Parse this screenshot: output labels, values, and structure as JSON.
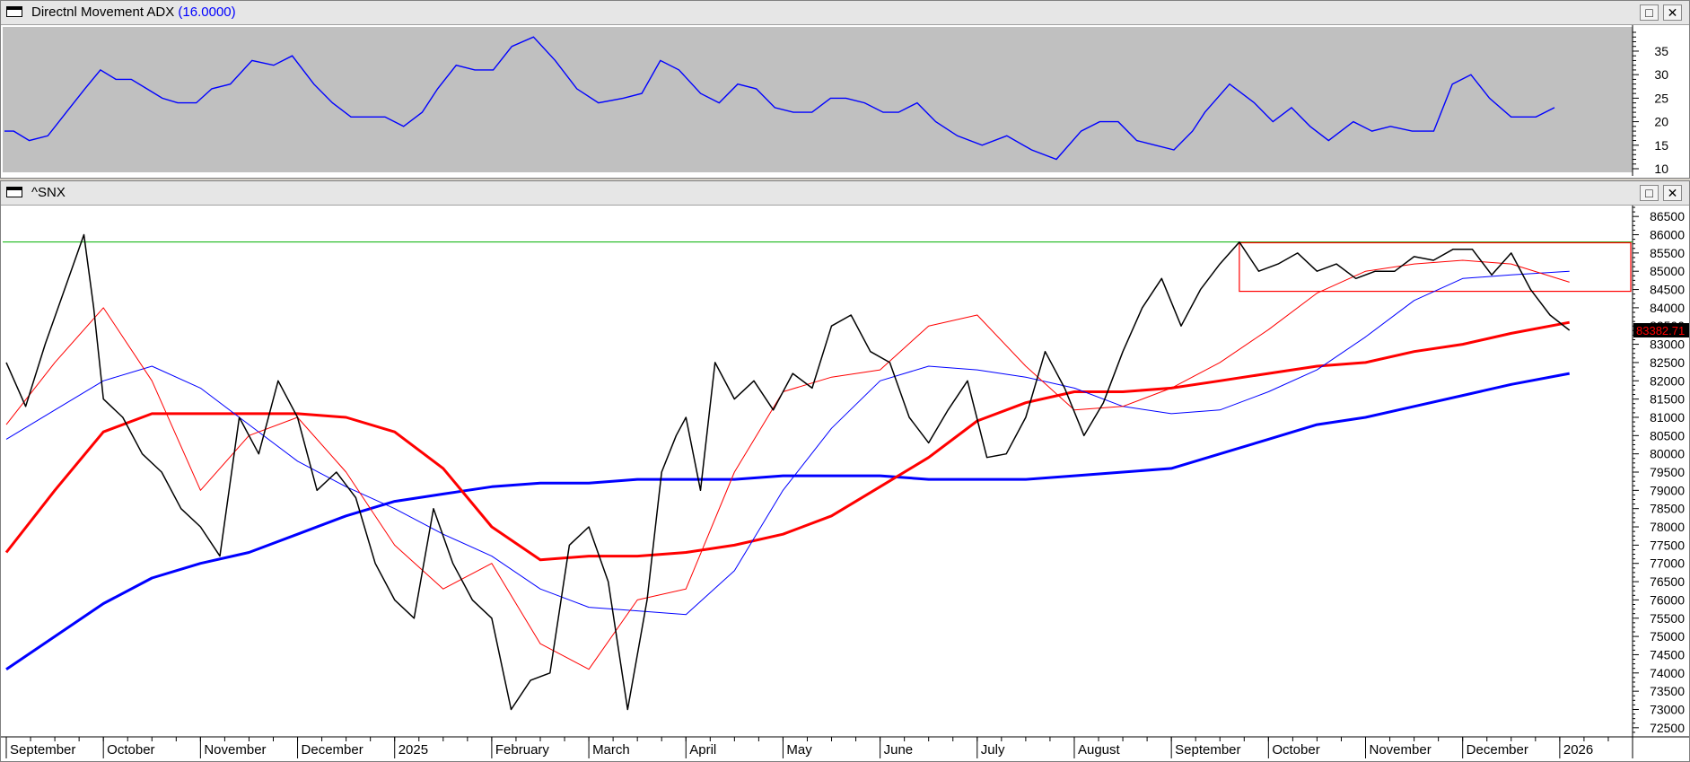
{
  "adx_panel": {
    "title": "Directnl Movement ADX",
    "param": "(16.0000)",
    "maximize_glyph": "□",
    "close_glyph": "✕",
    "background": "#c0c0c0",
    "line_color": "#0000ff"
  },
  "price_panel": {
    "title": "^SNX",
    "maximize_glyph": "□",
    "close_glyph": "✕",
    "last_price_label": "83382.71",
    "colors": {
      "price": "#000000",
      "fast_ma": "#ff0000",
      "medium_ma": "#0000ff",
      "slow_red_ma": "#ff0000",
      "slow_blue_ma": "#0000ff",
      "resistance": "#00b000",
      "range_box": "#ff0000",
      "last_label_bg": "#000000",
      "last_label_fg": "#ff0000"
    }
  },
  "chart_data": [
    {
      "type": "line",
      "name": "Directnl Movement ADX (16.0000)",
      "ylim": [
        10,
        39
      ],
      "y_ticks": [
        10,
        15,
        20,
        25,
        30,
        35
      ],
      "x": [
        0,
        3,
        8,
        14,
        20,
        26,
        31,
        36,
        41,
        46,
        51,
        56,
        62,
        67,
        73,
        80,
        87,
        93,
        100,
        106,
        112,
        117,
        123,
        129,
        135,
        140,
        146,
        152,
        158,
        164,
        171,
        178,
        185,
        192,
        200,
        206,
        212,
        218,
        225,
        231,
        237,
        243,
        249,
        255,
        261,
        267,
        272,
        278,
        284,
        289,
        295,
        301,
        308,
        316,
        324,
        332,
        340,
        348,
        354,
        360,
        366,
        372,
        378,
        384,
        388,
        396,
        404,
        410,
        416,
        422,
        428,
        436,
        442,
        448,
        455,
        462,
        468,
        474,
        480,
        487,
        495,
        501
      ],
      "y": [
        18,
        18,
        16,
        17,
        22,
        27,
        31,
        29,
        29,
        27,
        25,
        24,
        24,
        27,
        28,
        33,
        32,
        34,
        28,
        24,
        21,
        21,
        21,
        19,
        22,
        27,
        32,
        31,
        31,
        36,
        38,
        33,
        27,
        24,
        25,
        26,
        33,
        31,
        26,
        24,
        28,
        27,
        23,
        22,
        22,
        25,
        25,
        24,
        22,
        22,
        24,
        20,
        17,
        15,
        17,
        14,
        12,
        18,
        20,
        20,
        16,
        15,
        14,
        18,
        22,
        28,
        24,
        20,
        23,
        19,
        16,
        20,
        18,
        19,
        18,
        18,
        28,
        30,
        25,
        21,
        21,
        23
      ],
      "x_axis": "shared with price panel"
    },
    {
      "type": "line",
      "title": "^SNX",
      "ylim": [
        72250,
        86750
      ],
      "y_ticks": [
        72500,
        73000,
        73500,
        74000,
        74500,
        75000,
        75500,
        76000,
        76500,
        77000,
        77500,
        78000,
        78500,
        79000,
        79500,
        80000,
        80500,
        81000,
        81500,
        82000,
        82500,
        83000,
        83500,
        84000,
        84500,
        85000,
        85500,
        86000,
        86500
      ],
      "x_tick_labels": [
        "September",
        "October",
        "November",
        "December",
        "2025",
        "February",
        "March",
        "April",
        "May",
        "June",
        "July",
        "August",
        "September",
        "October",
        "November",
        "December",
        "2026"
      ],
      "x_tick_positions": [
        0,
        20,
        40,
        60,
        80,
        100,
        120,
        140,
        160,
        180,
        200,
        220,
        240,
        260,
        280,
        300,
        320
      ],
      "x_range": [
        0,
        335
      ],
      "series": [
        {
          "role": "price",
          "x": [
            0,
            4,
            8,
            12,
            16,
            18,
            20,
            24,
            28,
            32,
            36,
            40,
            44,
            48,
            52,
            56,
            60,
            64,
            68,
            72,
            76,
            80,
            84,
            88,
            92,
            96,
            100,
            104,
            108,
            112,
            116,
            120,
            124,
            128,
            132,
            135,
            138,
            140,
            143,
            146,
            150,
            154,
            158,
            162,
            166,
            170,
            174,
            178,
            182,
            186,
            190,
            194,
            198,
            202,
            206,
            210,
            214,
            218,
            222,
            226,
            230,
            234,
            238,
            242,
            246,
            250,
            254,
            258,
            262,
            266,
            270,
            274,
            278,
            282,
            286,
            290,
            294,
            298,
            302,
            306,
            310,
            314,
            318,
            322
          ],
          "y": [
            82500,
            81300,
            83000,
            84500,
            86000,
            84000,
            81500,
            81000,
            80000,
            79500,
            78500,
            78000,
            77200,
            81000,
            80000,
            82000,
            81000,
            79000,
            79500,
            78800,
            77000,
            76000,
            75500,
            78500,
            77000,
            76000,
            75500,
            73000,
            73800,
            74000,
            77500,
            78000,
            76500,
            73000,
            76000,
            79500,
            80500,
            81000,
            79000,
            82500,
            81500,
            82000,
            81200,
            82200,
            81800,
            83500,
            83800,
            82800,
            82500,
            81000,
            80300,
            81200,
            82000,
            79900,
            80000,
            81000,
            82800,
            81800,
            80500,
            81400,
            82800,
            84000,
            84800,
            83500,
            84500,
            85200,
            85800,
            85000,
            85200,
            85500,
            85000,
            85200,
            84800,
            85000,
            85000,
            85400,
            85300,
            85600,
            85600,
            84900,
            85500,
            84500,
            83800,
            83383
          ],
          "color": "#000000",
          "width": 1.5
        },
        {
          "role": "fast moving average",
          "x": [
            0,
            10,
            20,
            30,
            40,
            50,
            60,
            70,
            80,
            90,
            100,
            110,
            120,
            130,
            140,
            150,
            160,
            170,
            180,
            190,
            200,
            210,
            220,
            230,
            240,
            250,
            260,
            270,
            280,
            290,
            300,
            310,
            322
          ],
          "y": [
            80800,
            82500,
            84000,
            82000,
            79000,
            80500,
            81000,
            79500,
            77500,
            76300,
            77000,
            74800,
            74100,
            76000,
            76300,
            79500,
            81700,
            82100,
            82300,
            83500,
            83800,
            82400,
            81200,
            81300,
            81800,
            82500,
            83400,
            84400,
            85000,
            85200,
            85300,
            85200,
            84700
          ],
          "color": "#ff0000",
          "width": 1
        },
        {
          "role": "medium moving average",
          "x": [
            0,
            10,
            20,
            30,
            40,
            50,
            60,
            70,
            80,
            90,
            100,
            110,
            120,
            130,
            140,
            150,
            160,
            170,
            180,
            190,
            200,
            210,
            220,
            230,
            240,
            250,
            260,
            270,
            280,
            290,
            300,
            310,
            322
          ],
          "y": [
            80400,
            81200,
            82000,
            82400,
            81800,
            80800,
            79800,
            79100,
            78500,
            77800,
            77200,
            76300,
            75800,
            75700,
            75600,
            76800,
            79000,
            80700,
            82000,
            82400,
            82300,
            82100,
            81800,
            81300,
            81100,
            81200,
            81700,
            82300,
            83200,
            84200,
            84800,
            84900,
            85000
          ],
          "color": "#0000ff",
          "width": 1
        },
        {
          "role": "slow moving average",
          "x": [
            0,
            10,
            20,
            30,
            40,
            50,
            60,
            70,
            80,
            90,
            100,
            110,
            120,
            130,
            140,
            150,
            160,
            170,
            180,
            190,
            200,
            210,
            220,
            230,
            240,
            250,
            260,
            270,
            280,
            290,
            300,
            310,
            322
          ],
          "y": [
            77300,
            79000,
            80600,
            81100,
            81100,
            81100,
            81100,
            81000,
            80600,
            79600,
            78000,
            77100,
            77200,
            77200,
            77300,
            77500,
            77800,
            78300,
            79100,
            79900,
            80900,
            81400,
            81700,
            81700,
            81800,
            82000,
            82200,
            82400,
            82500,
            82800,
            83000,
            83300,
            83600
          ],
          "color": "#ff0000",
          "width": 3
        },
        {
          "role": "long moving average",
          "x": [
            0,
            10,
            20,
            30,
            40,
            50,
            60,
            70,
            80,
            90,
            100,
            110,
            120,
            130,
            140,
            150,
            160,
            170,
            180,
            190,
            200,
            210,
            220,
            230,
            240,
            250,
            260,
            270,
            280,
            290,
            300,
            310,
            322
          ],
          "y": [
            74100,
            75000,
            75900,
            76600,
            77000,
            77300,
            77800,
            78300,
            78700,
            78900,
            79100,
            79200,
            79200,
            79300,
            79300,
            79300,
            79400,
            79400,
            79400,
            79300,
            79300,
            79300,
            79400,
            79500,
            79600,
            80000,
            80400,
            80800,
            81000,
            81300,
            81600,
            81900,
            82200
          ]
        }
      ],
      "annotations": [
        {
          "type": "horizontal-line",
          "y": 85800,
          "color": "#00b000"
        },
        {
          "type": "rectangle",
          "x": [
            254,
            335
          ],
          "y": [
            84450,
            85780
          ],
          "color": "#ff0000"
        }
      ]
    }
  ]
}
